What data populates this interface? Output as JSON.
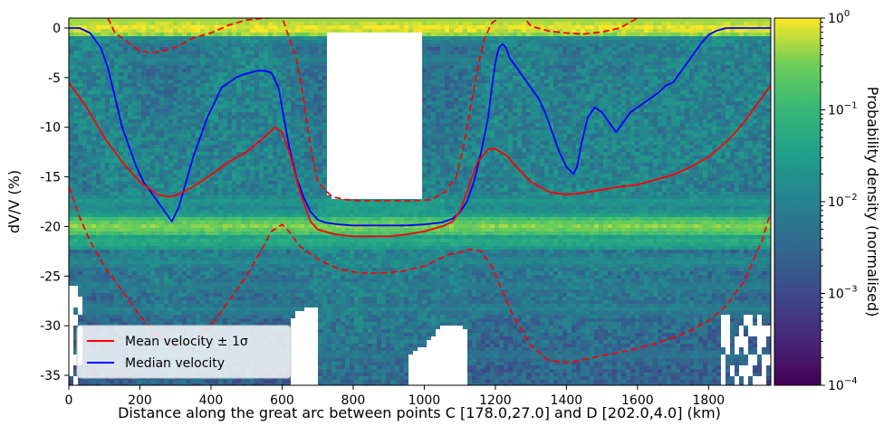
{
  "chart_data": {
    "type": "heatmap",
    "xlabel": "Distance along the great arc between points C [178.0,27.0] and D [202.0,4.0] (km)",
    "ylabel": "dV/V (%)",
    "xlim": [
      0,
      1975
    ],
    "ylim": [
      -36,
      1
    ],
    "x_ticks": [
      0,
      200,
      400,
      600,
      800,
      1000,
      1200,
      1400,
      1600,
      1800
    ],
    "y_ticks": [
      0,
      -5,
      -10,
      -15,
      -20,
      -25,
      -30,
      -35
    ],
    "colorbar": {
      "label": "Probability density (normalised)",
      "scale": "log",
      "range": [
        0.0001,
        1
      ],
      "ticks": [
        {
          "value": 0.0001,
          "base": "10",
          "exp": "−4"
        },
        {
          "value": 0.001,
          "base": "10",
          "exp": "−3"
        },
        {
          "value": 0.01,
          "base": "10",
          "exp": "−2"
        },
        {
          "value": 0.1,
          "base": "10",
          "exp": "−1"
        },
        {
          "value": 1,
          "base": "10",
          "exp": "0"
        }
      ],
      "colormap": "viridis"
    },
    "legend": {
      "placement": "lower-left",
      "entries": [
        {
          "label": "Mean velocity ± 1σ",
          "color": "#ff0000"
        },
        {
          "label": "Median velocity",
          "color": "#0000ff"
        }
      ]
    },
    "series": [
      {
        "name": "Median velocity",
        "color": "#0000ff",
        "style": "solid",
        "x": [
          0,
          30,
          60,
          90,
          110,
          130,
          150,
          170,
          190,
          210,
          230,
          250,
          270,
          290,
          310,
          330,
          350,
          370,
          390,
          410,
          430,
          450,
          470,
          490,
          510,
          530,
          550,
          570,
          590,
          600,
          620,
          640,
          660,
          680,
          700,
          720,
          760,
          800,
          850,
          900,
          950,
          1000,
          1050,
          1080,
          1100,
          1120,
          1140,
          1160,
          1180,
          1190,
          1200,
          1210,
          1220,
          1230,
          1240,
          1260,
          1280,
          1300,
          1320,
          1340,
          1360,
          1380,
          1400,
          1420,
          1430,
          1440,
          1460,
          1480,
          1500,
          1520,
          1540,
          1560,
          1580,
          1600,
          1620,
          1640,
          1660,
          1680,
          1700,
          1720,
          1740,
          1760,
          1780,
          1800,
          1820,
          1850,
          1900,
          1975
        ],
        "y": [
          0,
          0,
          -0.5,
          -2,
          -4,
          -7,
          -10,
          -12,
          -14,
          -15.5,
          -16.5,
          -17.5,
          -18.5,
          -19.5,
          -18,
          -15.5,
          -13,
          -11,
          -9,
          -7.5,
          -6,
          -5.5,
          -5,
          -4.7,
          -4.5,
          -4.3,
          -4.3,
          -4.5,
          -6,
          -8,
          -12,
          -15,
          -17,
          -18.5,
          -19.3,
          -19.6,
          -19.8,
          -19.9,
          -19.9,
          -19.9,
          -19.9,
          -19.8,
          -19.6,
          -19.2,
          -18.6,
          -17.5,
          -15.5,
          -12.5,
          -9,
          -6,
          -3.5,
          -2,
          -1.6,
          -2,
          -3,
          -4,
          -5,
          -6,
          -7,
          -8.5,
          -10.5,
          -12.5,
          -14,
          -14.7,
          -14,
          -12,
          -9,
          -8,
          -8.5,
          -9.5,
          -10.5,
          -9.5,
          -8.5,
          -8,
          -7.5,
          -7,
          -6.5,
          -5.8,
          -5.5,
          -4.5,
          -3.5,
          -2.5,
          -1.5,
          -0.7,
          -0.3,
          0,
          0,
          0
        ]
      },
      {
        "name": "Mean velocity",
        "color": "#ff0000",
        "style": "solid",
        "x": [
          0,
          50,
          100,
          150,
          200,
          250,
          280,
          300,
          350,
          400,
          450,
          500,
          550,
          580,
          600,
          620,
          650,
          680,
          700,
          750,
          800,
          850,
          900,
          950,
          1000,
          1050,
          1080,
          1100,
          1120,
          1150,
          1180,
          1200,
          1230,
          1260,
          1300,
          1350,
          1400,
          1450,
          1500,
          1550,
          1600,
          1650,
          1700,
          1750,
          1800,
          1850,
          1900,
          1950,
          1975
        ],
        "y": [
          -5.5,
          -8,
          -11,
          -13.5,
          -15.5,
          -16.8,
          -17,
          -16.9,
          -16,
          -14.8,
          -13.5,
          -12.5,
          -11,
          -10,
          -10.5,
          -12.5,
          -16.5,
          -19.5,
          -20.3,
          -20.8,
          -21,
          -21,
          -21,
          -20.8,
          -20.5,
          -20,
          -19.5,
          -18.5,
          -16.5,
          -13.5,
          -12.2,
          -12.2,
          -12.8,
          -14,
          -15.5,
          -16.5,
          -16.8,
          -16.6,
          -16.3,
          -16,
          -15.8,
          -15.3,
          -14.8,
          -14,
          -13,
          -11.5,
          -9.5,
          -7,
          -5.8
        ]
      },
      {
        "name": "Mean velocity + 1σ",
        "color": "#ff0000",
        "style": "dashed",
        "x": [
          110,
          130,
          150,
          180,
          200,
          230,
          270,
          310,
          350,
          400,
          450,
          500,
          550,
          600,
          620,
          640,
          660,
          680,
          700,
          740,
          780,
          820,
          860,
          900,
          940,
          980,
          1020,
          1060,
          1090,
          1110,
          1130,
          1150,
          1170,
          1190,
          1210,
          1240,
          1280,
          1300,
          1350,
          1400,
          1450,
          1500,
          1550,
          1580,
          1600
        ],
        "y": [
          1,
          -0.5,
          -1,
          -1.8,
          -2.3,
          -2.5,
          -2.3,
          -1.8,
          -1,
          -0.5,
          0.3,
          0.8,
          1,
          1.1,
          -1,
          -3,
          -7,
          -12,
          -15.5,
          -17,
          -17.3,
          -17.4,
          -17.4,
          -17.4,
          -17.4,
          -17.4,
          -17.3,
          -16.5,
          -15,
          -12,
          -8,
          -4,
          -1,
          0.5,
          1,
          1.2,
          1.1,
          0.2,
          -0.3,
          -0.5,
          -0.6,
          -0.4,
          0,
          0.6,
          1
        ]
      },
      {
        "name": "Mean velocity − 1σ",
        "color": "#ff0000",
        "style": "dashed",
        "x": [
          0,
          30,
          60,
          100,
          150,
          200,
          250,
          300,
          350,
          400,
          450,
          500,
          540,
          570,
          600,
          620,
          650,
          700,
          760,
          820,
          880,
          940,
          1000,
          1040,
          1070,
          1100,
          1130,
          1160,
          1190,
          1220,
          1250,
          1300,
          1350,
          1400,
          1450,
          1500,
          1550,
          1600,
          1650,
          1700,
          1750,
          1800,
          1850,
          1900,
          1950,
          1975
        ],
        "y": [
          -16,
          -19,
          -21.5,
          -24,
          -26.5,
          -29,
          -31,
          -32,
          -31.5,
          -30,
          -27.5,
          -25,
          -22.5,
          -20.5,
          -19.8,
          -20.5,
          -22,
          -23.3,
          -24.3,
          -24.7,
          -24.7,
          -24.5,
          -24,
          -23.3,
          -22.8,
          -22.6,
          -22.3,
          -22.5,
          -24,
          -26.5,
          -29,
          -32,
          -33.5,
          -33.7,
          -33.4,
          -33,
          -32.7,
          -32.3,
          -31.8,
          -31.2,
          -30.5,
          -29.5,
          -28,
          -25.5,
          -21.5,
          -18.5
        ]
      }
    ],
    "density_bands": [
      {
        "y": 0,
        "level": 1.0
      },
      {
        "y": -1,
        "level": 0.55
      },
      {
        "y": -3.2,
        "level": 0.5
      },
      {
        "y": -17.5,
        "level": 0.6
      },
      {
        "y": -19,
        "level": 0.65
      },
      {
        "y": -20,
        "level": 0.9
      },
      {
        "y": -21.5,
        "level": 0.7
      },
      {
        "y": -23.5,
        "level": 0.55
      },
      {
        "y": -26,
        "level": 0.5
      },
      {
        "y": -28.3,
        "level": 0.5
      },
      {
        "y": -33,
        "level": 0.45
      }
    ]
  }
}
